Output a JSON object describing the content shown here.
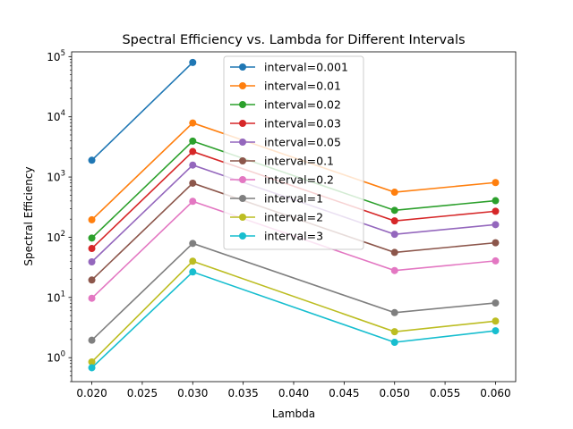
{
  "chart_data": {
    "type": "line",
    "title": "Spectral Efficiency vs. Lambda for Different Intervals",
    "xlabel": "Lambda",
    "ylabel": "Spectral Efficiency",
    "yscale": "log",
    "xlim": [
      0.018,
      0.062
    ],
    "ylim": [
      0.4,
      120000
    ],
    "grid": false,
    "legend_position": "upper-center",
    "x_ticks": [
      {
        "value": 0.02,
        "label": "0.020"
      },
      {
        "value": 0.025,
        "label": "0.025"
      },
      {
        "value": 0.03,
        "label": "0.030"
      },
      {
        "value": 0.035,
        "label": "0.035"
      },
      {
        "value": 0.04,
        "label": "0.040"
      },
      {
        "value": 0.045,
        "label": "0.045"
      },
      {
        "value": 0.05,
        "label": "0.050"
      },
      {
        "value": 0.055,
        "label": "0.055"
      },
      {
        "value": 0.06,
        "label": "0.060"
      }
    ],
    "y_ticks": [
      {
        "value": 1,
        "base": "10",
        "exp": "0"
      },
      {
        "value": 10,
        "base": "10",
        "exp": "1"
      },
      {
        "value": 100,
        "base": "10",
        "exp": "2"
      },
      {
        "value": 1000,
        "base": "10",
        "exp": "3"
      },
      {
        "value": 10000,
        "base": "10",
        "exp": "4"
      },
      {
        "value": 100000,
        "base": "10",
        "exp": "5"
      }
    ],
    "series": [
      {
        "name": "interval=0.001",
        "color": "#1f77b4",
        "x": [
          0.02,
          0.03
        ],
        "values": [
          1900,
          80000
        ]
      },
      {
        "name": "interval=0.01",
        "color": "#ff7f0e",
        "x": [
          0.02,
          0.03,
          0.05,
          0.06
        ],
        "values": [
          195,
          7900,
          560,
          810
        ]
      },
      {
        "name": "interval=0.02",
        "color": "#2ca02c",
        "x": [
          0.02,
          0.03,
          0.05,
          0.06
        ],
        "values": [
          97,
          3950,
          280,
          405
        ]
      },
      {
        "name": "interval=0.03",
        "color": "#d62728",
        "x": [
          0.02,
          0.03,
          0.05,
          0.06
        ],
        "values": [
          65,
          2650,
          187,
          270
        ]
      },
      {
        "name": "interval=0.05",
        "color": "#9467bd",
        "x": [
          0.02,
          0.03,
          0.05,
          0.06
        ],
        "values": [
          39,
          1580,
          112,
          162
        ]
      },
      {
        "name": "interval=0.1",
        "color": "#8c564b",
        "x": [
          0.02,
          0.03,
          0.05,
          0.06
        ],
        "values": [
          19.5,
          790,
          56,
          81
        ]
      },
      {
        "name": "interval=0.2",
        "color": "#e377c2",
        "x": [
          0.02,
          0.03,
          0.05,
          0.06
        ],
        "values": [
          9.7,
          395,
          28,
          40.5
        ]
      },
      {
        "name": "interval=1",
        "color": "#7f7f7f",
        "x": [
          0.02,
          0.03,
          0.05,
          0.06
        ],
        "values": [
          1.95,
          79,
          5.6,
          8.1
        ]
      },
      {
        "name": "interval=2",
        "color": "#bcbd22",
        "x": [
          0.02,
          0.03,
          0.05,
          0.06
        ],
        "values": [
          0.85,
          40,
          2.7,
          4.05
        ]
      },
      {
        "name": "interval=3",
        "color": "#17becf",
        "x": [
          0.02,
          0.03,
          0.05,
          0.06
        ],
        "values": [
          0.68,
          26.5,
          1.8,
          2.8
        ]
      }
    ]
  }
}
